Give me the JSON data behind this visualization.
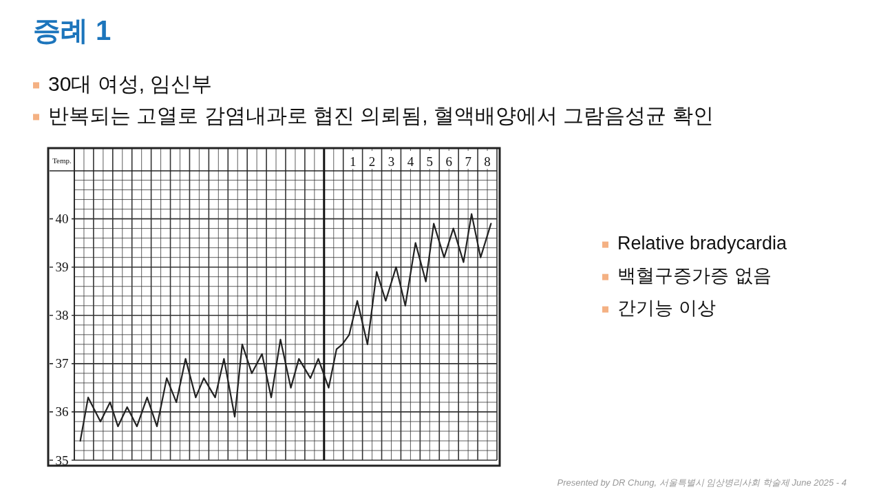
{
  "chart_data": {
    "type": "line",
    "title": "증례 1",
    "ylabel": "Temp.",
    "annotations": [
      "30대 여성, 임신부",
      "반복되는 고열로 감염내과로 협진 의뢰됨, 혈액배양에서 그람음성균 확인",
      "Relative bradycardia",
      "백혈구증가증 없음",
      "간기능 이상",
      "Presented by DR Chung, 서울특별시 임상병리사회 학술제 June 2025 - 4"
    ],
    "x": [
      -13.19,
      -12.78,
      -12.14,
      -11.64,
      -11.23,
      -10.75,
      -10.24,
      -9.71,
      -9.2,
      -8.69,
      -8.19,
      -7.71,
      -7.18,
      -6.76,
      -6.17,
      -5.71,
      -5.15,
      -4.76,
      -4.26,
      -3.73,
      -3.25,
      -2.77,
      -2.23,
      -1.81,
      -1.21,
      -0.8,
      -0.26,
      0.15,
      0.45,
      0.81,
      1.23,
      1.76,
      2.24,
      2.71,
      3.25,
      3.73,
      4.26,
      4.8,
      5.21,
      5.75,
      6.23,
      6.76,
      7.18,
      7.65,
      8.19
    ],
    "series": [
      {
        "color": "#222222",
        "values": [
          35.4,
          36.3,
          35.8,
          36.2,
          35.7,
          36.1,
          35.7,
          36.3,
          35.7,
          36.7,
          36.2,
          37.1,
          36.3,
          36.7,
          36.3,
          37.1,
          35.9,
          37.4,
          36.8,
          37.2,
          36.3,
          37.5,
          36.5,
          37.1,
          36.7,
          37.1,
          36.5,
          37.3,
          37.4,
          37.6,
          38.3,
          37.4,
          38.9,
          38.3,
          39.0,
          38.2,
          39.5,
          38.7,
          39.9,
          39.2,
          39.8,
          39.1,
          40.1,
          39.2,
          39.9
        ]
      }
    ],
    "xlim": [
      -13.5,
      8.5
    ],
    "xticks": [
      1,
      2,
      3,
      4,
      5,
      6,
      7,
      8
    ],
    "ylim": [
      35,
      41.45
    ],
    "yticks": [
      35,
      36,
      37,
      38,
      39,
      40
    ],
    "grid": true,
    "marker": "none",
    "line_style": "solid",
    "ref_lines": [
      {
        "axis": "x",
        "value": -0.5,
        "color": "#111111"
      }
    ]
  }
}
